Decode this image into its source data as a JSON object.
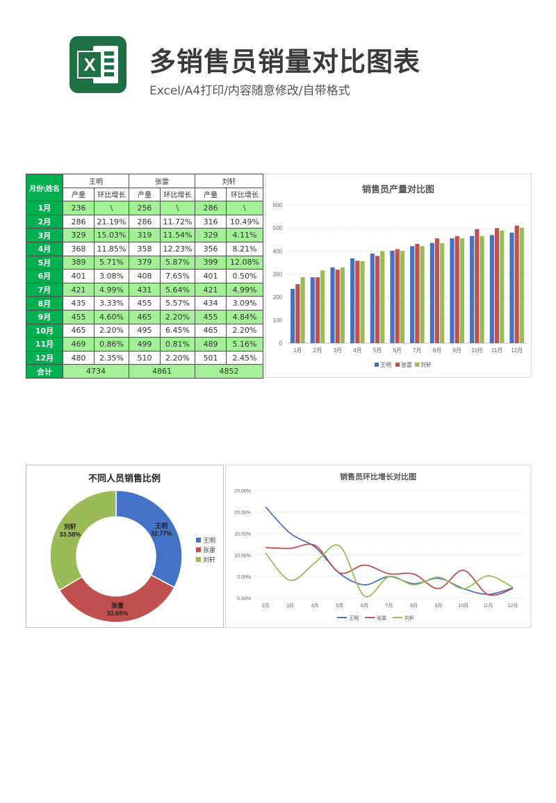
{
  "header": {
    "title": "多销售员销量对比图表",
    "subtitle": "Excel/A4打印/内容随意修改/自带格式",
    "logo_letter": "X",
    "logo_icon": "excel-logo-icon"
  },
  "table": {
    "corner": "月份\\姓名",
    "people": [
      "王明",
      "张雷",
      "刘轩"
    ],
    "sub_headers": [
      "产量",
      "环比增长"
    ],
    "rows": [
      {
        "month": "1月",
        "cells": [
          "236",
          "\\",
          "256",
          "\\",
          "286",
          "\\"
        ]
      },
      {
        "month": "2月",
        "cells": [
          "286",
          "21.19%",
          "286",
          "11.72%",
          "316",
          "10.49%"
        ]
      },
      {
        "month": "3月",
        "cells": [
          "329",
          "15.03%",
          "319",
          "11.54%",
          "329",
          "4.11%"
        ]
      },
      {
        "month": "4月",
        "cells": [
          "368",
          "11.85%",
          "358",
          "12.23%",
          "356",
          "8.21%"
        ]
      },
      {
        "month": "5月",
        "cells": [
          "389",
          "5.71%",
          "379",
          "5.87%",
          "399",
          "12.08%"
        ]
      },
      {
        "month": "6月",
        "cells": [
          "401",
          "3.08%",
          "408",
          "7.65%",
          "401",
          "0.50%"
        ]
      },
      {
        "month": "7月",
        "cells": [
          "421",
          "4.99%",
          "431",
          "5.64%",
          "421",
          "4.99%"
        ]
      },
      {
        "month": "8月",
        "cells": [
          "435",
          "3.33%",
          "455",
          "5.57%",
          "434",
          "3.09%"
        ]
      },
      {
        "month": "9月",
        "cells": [
          "455",
          "4.60%",
          "465",
          "2.20%",
          "455",
          "4.84%"
        ]
      },
      {
        "month": "10月",
        "cells": [
          "465",
          "2.20%",
          "495",
          "6.45%",
          "465",
          "2.20%"
        ]
      },
      {
        "month": "11月",
        "cells": [
          "469",
          "0.86%",
          "499",
          "0.81%",
          "489",
          "5.16%"
        ]
      },
      {
        "month": "12月",
        "cells": [
          "480",
          "2.35%",
          "510",
          "2.20%",
          "501",
          "2.45%"
        ]
      }
    ],
    "total_label": "合计",
    "totals": [
      "4734",
      "4861",
      "4852"
    ]
  },
  "colors": {
    "wang": "#4472c4",
    "zhang": "#c0504d",
    "liu": "#9bbb59",
    "table_green": "#00b050",
    "table_light": "#a3f097"
  },
  "chart_data": [
    {
      "type": "bar",
      "title": "销售员产量对比图",
      "categories": [
        "1月",
        "2月",
        "3月",
        "4月",
        "5月",
        "6月",
        "7月",
        "8月",
        "9月",
        "10月",
        "11月",
        "12月"
      ],
      "series": [
        {
          "name": "王明",
          "values": [
            236,
            286,
            329,
            368,
            389,
            401,
            421,
            435,
            455,
            465,
            469,
            480
          ]
        },
        {
          "name": "张雷",
          "values": [
            256,
            286,
            319,
            358,
            379,
            408,
            431,
            455,
            465,
            495,
            499,
            510
          ]
        },
        {
          "name": "刘轩",
          "values": [
            286,
            316,
            329,
            356,
            399,
            401,
            421,
            434,
            455,
            465,
            489,
            501
          ]
        }
      ],
      "ylim": [
        0,
        600
      ],
      "yticks": [
        "0",
        "100",
        "200",
        "300",
        "400",
        "500",
        "600"
      ],
      "grid": true,
      "legend": "bottom"
    },
    {
      "type": "pie",
      "title": "不同人员销售比例",
      "labels": [
        "王明",
        "张雷",
        "刘轩"
      ],
      "values": [
        4734,
        4861,
        4852
      ],
      "percent_labels": [
        "32.77%",
        "33.65%",
        "33.58%"
      ],
      "legend": "right",
      "donut": true
    },
    {
      "type": "line",
      "title": "销售员环比增长对比图",
      "categories": [
        "2月",
        "3月",
        "4月",
        "5月",
        "6月",
        "7月",
        "8月",
        "9月",
        "10月",
        "11月",
        "12月"
      ],
      "series": [
        {
          "name": "王明",
          "values": [
            21.19,
            15.03,
            11.85,
            5.71,
            3.08,
            4.99,
            3.33,
            4.6,
            2.2,
            0.86,
            2.35
          ]
        },
        {
          "name": "张雷",
          "values": [
            11.72,
            11.54,
            12.23,
            5.87,
            7.65,
            5.64,
            5.57,
            2.2,
            6.45,
            0.81,
            2.2
          ]
        },
        {
          "name": "刘轩",
          "values": [
            10.49,
            4.11,
            8.21,
            12.08,
            0.5,
            4.99,
            3.09,
            4.84,
            2.2,
            5.16,
            2.45
          ]
        }
      ],
      "ylim": [
        0,
        25
      ],
      "yticks": [
        "0.00%",
        "5.00%",
        "10.00%",
        "15.00%",
        "20.00%",
        "25.00%"
      ],
      "smooth": true,
      "grid": true,
      "legend": "bottom"
    }
  ]
}
